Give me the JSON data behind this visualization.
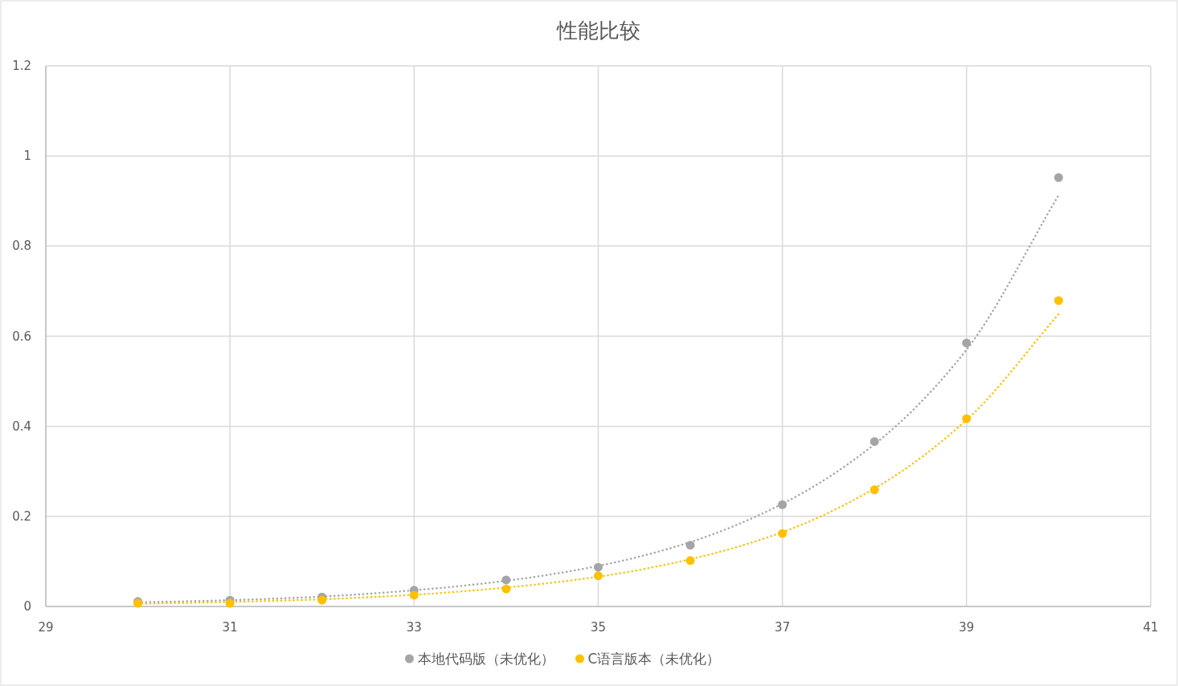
{
  "chart_data": {
    "type": "scatter",
    "title": "性能比较",
    "x": [
      30,
      31,
      32,
      33,
      34,
      35,
      36,
      37,
      38,
      39,
      40
    ],
    "xlim": [
      29,
      41
    ],
    "xticks": [
      29,
      31,
      33,
      35,
      37,
      39,
      41
    ],
    "ylim": [
      0,
      1.2
    ],
    "yticks": [
      0,
      0.2,
      0.4,
      0.6,
      0.8,
      1,
      1.2
    ],
    "grid": true,
    "legend": "bottom",
    "marker": "circle",
    "series": [
      {
        "name": "本地代码版（未优化）",
        "color": "#a5a5a5",
        "values": [
          0.011,
          0.014,
          0.021,
          0.036,
          0.059,
          0.087,
          0.136,
          0.226,
          0.366,
          0.585,
          0.952
        ]
      },
      {
        "name": "C语言版本（未优化）",
        "color": "#ffc000",
        "values": [
          0.007,
          0.007,
          0.014,
          0.025,
          0.039,
          0.068,
          0.102,
          0.162,
          0.259,
          0.417,
          0.679
        ]
      },
      {
        "type": "line",
        "line_style": "dotted",
        "marker": "none",
        "color": "#a5a5a5",
        "x": [
          30,
          31,
          32,
          33,
          34,
          35,
          36,
          37,
          38,
          39,
          40
        ],
        "values": [
          0.009,
          0.014,
          0.022,
          0.036,
          0.057,
          0.09,
          0.143,
          0.228,
          0.36,
          0.57,
          0.913
        ]
      },
      {
        "type": "line",
        "line_style": "dotted",
        "marker": "none",
        "color": "#ffc000",
        "x": [
          30,
          31,
          32,
          33,
          34,
          35,
          36,
          37,
          38,
          39,
          40
        ],
        "values": [
          0.006,
          0.01,
          0.016,
          0.026,
          0.042,
          0.066,
          0.105,
          0.165,
          0.262,
          0.414,
          0.649
        ]
      }
    ]
  }
}
